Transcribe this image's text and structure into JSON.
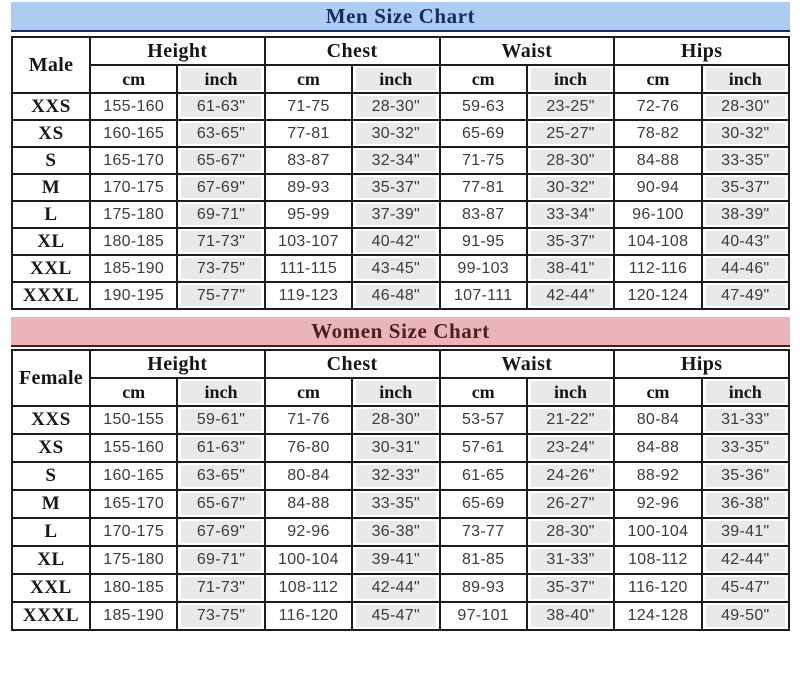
{
  "page": {
    "background": "#ffffff",
    "border_color": "#1c1c1c",
    "inch_cell_bg": "#e9e9e9"
  },
  "chart_data": [
    {
      "type": "table",
      "id": "men",
      "title": "Men Size Chart",
      "corner_label": "Male",
      "column_groups": [
        "Height",
        "Chest",
        "Waist",
        "Hips"
      ],
      "sub_headers": [
        "cm",
        "inch"
      ],
      "columns": [
        "Size",
        "Height cm",
        "Height inch",
        "Chest cm",
        "Chest inch",
        "Waist cm",
        "Waist inch",
        "Hips cm",
        "Hips inch"
      ],
      "rows": [
        {
          "size": "XXS",
          "cells": [
            "155-160",
            "61-63\"",
            "71-75",
            "28-30\"",
            "59-63",
            "23-25\"",
            "72-76",
            "28-30\""
          ]
        },
        {
          "size": "XS",
          "cells": [
            "160-165",
            "63-65\"",
            "77-81",
            "30-32\"",
            "65-69",
            "25-27\"",
            "78-82",
            "30-32\""
          ]
        },
        {
          "size": "S",
          "cells": [
            "165-170",
            "65-67\"",
            "83-87",
            "32-34\"",
            "71-75",
            "28-30\"",
            "84-88",
            "33-35\""
          ]
        },
        {
          "size": "M",
          "cells": [
            "170-175",
            "67-69\"",
            "89-93",
            "35-37\"",
            "77-81",
            "30-32\"",
            "90-94",
            "35-37\""
          ]
        },
        {
          "size": "L",
          "cells": [
            "175-180",
            "69-71\"",
            "95-99",
            "37-39\"",
            "83-87",
            "33-34\"",
            "96-100",
            "38-39\""
          ]
        },
        {
          "size": "XL",
          "cells": [
            "180-185",
            "71-73\"",
            "103-107",
            "40-42\"",
            "91-95",
            "35-37\"",
            "104-108",
            "40-43\""
          ]
        },
        {
          "size": "XXL",
          "cells": [
            "185-190",
            "73-75\"",
            "111-115",
            "43-45\"",
            "99-103",
            "38-41\"",
            "112-116",
            "44-46\""
          ]
        },
        {
          "size": "XXXL",
          "cells": [
            "190-195",
            "75-77\"",
            "119-123",
            "46-48\"",
            "107-111",
            "42-44\"",
            "120-124",
            "47-49\""
          ]
        }
      ],
      "accent": {
        "title_bg": "#abcdf1",
        "title_text": "#1b2a66"
      }
    },
    {
      "type": "table",
      "id": "women",
      "title": "Women Size Chart",
      "corner_label": "Female",
      "column_groups": [
        "Height",
        "Chest",
        "Waist",
        "Hips"
      ],
      "sub_headers": [
        "cm",
        "inch"
      ],
      "columns": [
        "Size",
        "Height cm",
        "Height inch",
        "Chest cm",
        "Chest inch",
        "Waist cm",
        "Waist inch",
        "Hips cm",
        "Hips inch"
      ],
      "rows": [
        {
          "size": "XXS",
          "cells": [
            "150-155",
            "59-61\"",
            "71-76",
            "28-30\"",
            "53-57",
            "21-22\"",
            "80-84",
            "31-33\""
          ]
        },
        {
          "size": "XS",
          "cells": [
            "155-160",
            "61-63\"",
            "76-80",
            "30-31\"",
            "57-61",
            "23-24\"",
            "84-88",
            "33-35\""
          ]
        },
        {
          "size": "S",
          "cells": [
            "160-165",
            "63-65\"",
            "80-84",
            "32-33\"",
            "61-65",
            "24-26\"",
            "88-92",
            "35-36\""
          ]
        },
        {
          "size": "M",
          "cells": [
            "165-170",
            "65-67\"",
            "84-88",
            "33-35\"",
            "65-69",
            "26-27\"",
            "92-96",
            "36-38\""
          ]
        },
        {
          "size": "L",
          "cells": [
            "170-175",
            "67-69\"",
            "92-96",
            "36-38\"",
            "73-77",
            "28-30\"",
            "100-104",
            "39-41\""
          ]
        },
        {
          "size": "XL",
          "cells": [
            "175-180",
            "69-71\"",
            "100-104",
            "39-41\"",
            "81-85",
            "31-33\"",
            "108-112",
            "42-44\""
          ]
        },
        {
          "size": "XXL",
          "cells": [
            "180-185",
            "71-73\"",
            "108-112",
            "42-44\"",
            "89-93",
            "35-37\"",
            "116-120",
            "45-47\""
          ]
        },
        {
          "size": "XXXL",
          "cells": [
            "185-190",
            "73-75\"",
            "116-120",
            "45-47\"",
            "97-101",
            "38-40\"",
            "124-128",
            "49-50\""
          ]
        }
      ],
      "accent": {
        "title_bg": "#eab5b8",
        "title_text": "#4e1d1c"
      }
    }
  ]
}
